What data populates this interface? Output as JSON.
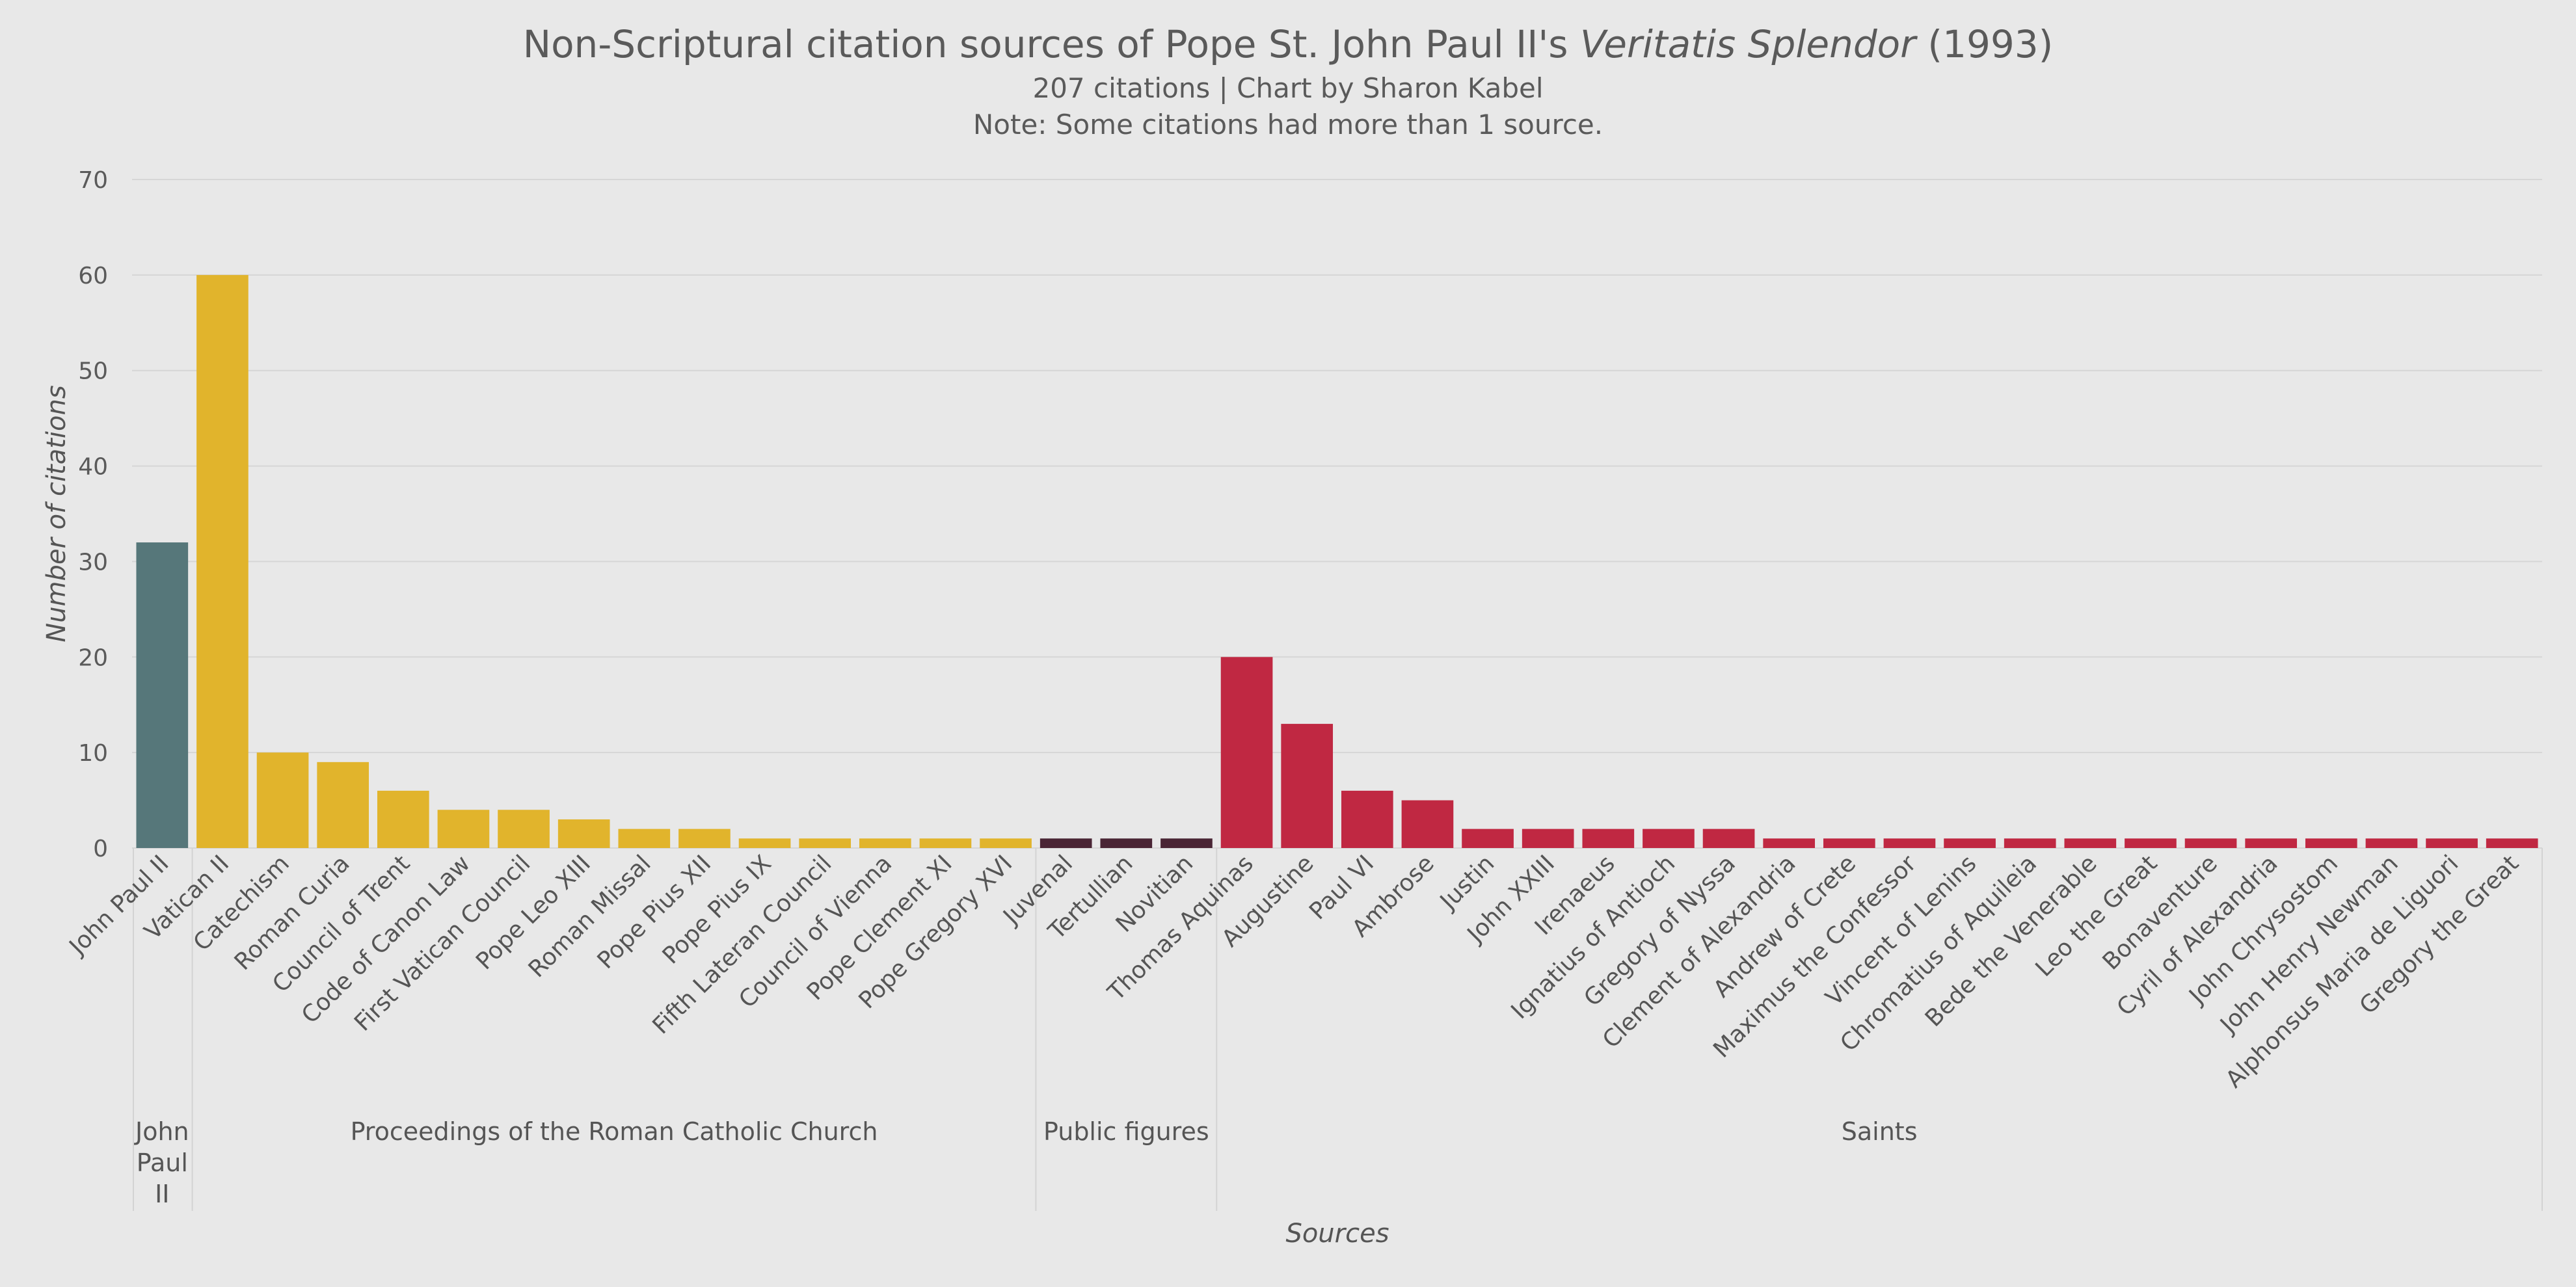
{
  "title": {
    "prefix": "Non-Scriptural citation sources of Pope St. John Paul II's ",
    "italic": "Veritatis Splendor",
    "suffix": " (1993)"
  },
  "subtitle_lines": [
    "207 citations | Chart by Sharon Kabel",
    "Note: Some citations had more than 1 source."
  ],
  "chart_data": {
    "type": "bar",
    "xlabel": "Sources",
    "ylabel": "Number of citations",
    "ylim": [
      0,
      70
    ],
    "yticks": [
      0,
      10,
      20,
      30,
      40,
      50,
      60,
      70
    ],
    "grid": true,
    "legend": "none",
    "groups": [
      {
        "name": "John Paul II",
        "label_lines": [
          "John",
          "Paul",
          "II"
        ],
        "color": "#56777a",
        "categories": [
          "John Paul II"
        ],
        "values": [
          32
        ]
      },
      {
        "name": "Proceedings of the Roman Catholic Church",
        "label_lines": [
          "Proceedings of the Roman Catholic Church"
        ],
        "color": "#e1b42c",
        "categories": [
          "Vatican II",
          "Catechism",
          "Roman Curia",
          "Council of Trent",
          "Code of Canon Law",
          "First Vatican Council",
          "Pope Leo XIII",
          "Roman Missal",
          "Pope Pius XII",
          "Pope Pius IX",
          "Fifth Lateran Council",
          "Council of Vienna",
          "Pope Clement XI",
          "Pope Gregory XVI"
        ],
        "values": [
          60,
          10,
          9,
          6,
          4,
          4,
          3,
          2,
          2,
          1,
          1,
          1,
          1,
          1
        ]
      },
      {
        "name": "Public figures",
        "label_lines": [
          "Public figures"
        ],
        "color": "#4a2535",
        "categories": [
          "Juvenal",
          "Tertullian",
          "Novitian"
        ],
        "values": [
          1,
          1,
          1
        ]
      },
      {
        "name": "Saints",
        "label_lines": [
          "Saints"
        ],
        "color": "#c02842",
        "categories": [
          "Thomas Aquinas",
          "Augustine",
          "Paul VI",
          "Ambrose",
          "Justin",
          "John XXIII",
          "Irenaeus",
          "Ignatius of Antioch",
          "Gregory of Nyssa",
          "Clement of Alexandria",
          "Andrew of Crete",
          "Maximus the Confessor",
          "Vincent of Lenins",
          "Chromatius of Aquileia",
          "Bede the Venerable",
          "Leo the Great",
          "Bonaventure",
          "Cyril of Alexandria",
          "John Chrysostom",
          "John Henry Newman",
          "Alphonsus Maria de Liguori",
          "Gregory the Great"
        ],
        "values": [
          20,
          13,
          6,
          5,
          2,
          2,
          2,
          2,
          2,
          1,
          1,
          1,
          1,
          1,
          1,
          1,
          1,
          1,
          1,
          1,
          1,
          1
        ]
      }
    ]
  }
}
